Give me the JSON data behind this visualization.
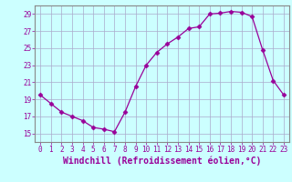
{
  "x": [
    0,
    1,
    2,
    3,
    4,
    5,
    6,
    7,
    8,
    9,
    10,
    11,
    12,
    13,
    14,
    15,
    16,
    17,
    18,
    19,
    20,
    21,
    22,
    23
  ],
  "y": [
    19.5,
    18.5,
    17.5,
    17.0,
    16.5,
    15.7,
    15.5,
    15.2,
    17.5,
    20.5,
    23.0,
    24.5,
    25.5,
    26.3,
    27.3,
    27.5,
    29.0,
    29.1,
    29.3,
    29.2,
    28.7,
    24.8,
    21.2,
    19.5
  ],
  "line_color": "#990099",
  "marker": "D",
  "marker_size": 2.5,
  "bg_color": "#ccffff",
  "grid_color": "#aaaacc",
  "xlabel": "Windchill (Refroidissement éolien,°C)",
  "xlabel_fontsize": 7,
  "ylim": [
    14,
    30
  ],
  "xlim": [
    -0.5,
    23.5
  ],
  "yticks": [
    15,
    17,
    19,
    21,
    23,
    25,
    27,
    29
  ],
  "xtick_labels": [
    "0",
    "1",
    "2",
    "3",
    "4",
    "5",
    "6",
    "7",
    "8",
    "9",
    "10",
    "11",
    "12",
    "13",
    "14",
    "15",
    "16",
    "17",
    "18",
    "19",
    "20",
    "21",
    "22",
    "23"
  ],
  "tick_color": "#990099",
  "tick_fontsize": 5.5,
  "spine_color": "#888888"
}
